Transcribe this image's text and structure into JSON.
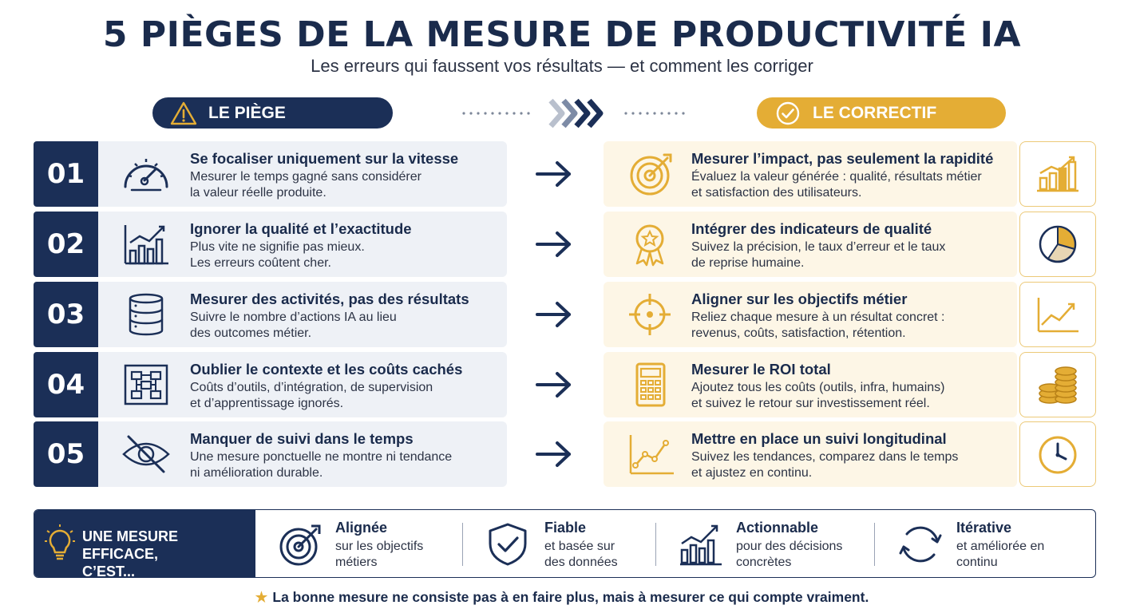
{
  "title": "5 PIÈGES DE LA MESURE DE PRODUCTIVITÉ IA",
  "subtitle": "Les erreurs qui faussent vos résultats — et comment les corriger",
  "header_left": {
    "label": "LE PIÈGE",
    "icon": "warning-icon"
  },
  "header_right": {
    "label": "LE CORRECTIF",
    "icon": "check-circle-icon"
  },
  "colors": {
    "navy": "#1b2f57",
    "gold": "#e4ad35",
    "trap_bg": "#eef1f6",
    "fix_bg": "#fdf6e6"
  },
  "rows": [
    {
      "number": "01",
      "trap": {
        "title": "Se focaliser uniquement sur la vitesse",
        "line1": "Mesurer le temps gagné sans considérer",
        "line2": "la valeur réelle produite.",
        "icon": "speedometer-icon"
      },
      "fix": {
        "title": "Mesurer l’impact, pas seulement la rapidité",
        "line1": "Évaluez la valeur générée : qualité, résultats métier",
        "line2": "et satisfaction des utilisateurs.",
        "icon": "target-arrow-icon",
        "side_icon": "bar-chart-growth-icon"
      }
    },
    {
      "number": "02",
      "trap": {
        "title": "Ignorer la qualité et l’exactitude",
        "line1": "Plus vite ne signifie pas mieux.",
        "line2": "Les erreurs coûtent cher.",
        "icon": "bar-chart-icon"
      },
      "fix": {
        "title": "Intégrer des indicateurs de qualité",
        "line1": "Suivez la précision, le taux d’erreur et le taux",
        "line2": "de reprise humaine.",
        "icon": "award-ribbon-icon",
        "side_icon": "pie-chart-icon"
      }
    },
    {
      "number": "03",
      "trap": {
        "title": "Mesurer des activités, pas des résultats",
        "line1": "Suivre le nombre d’actions IA au lieu",
        "line2": "des outcomes métier.",
        "icon": "database-icon"
      },
      "fix": {
        "title": "Aligner sur les objectifs métier",
        "line1": "Reliez chaque mesure à un résultat concret :",
        "line2": "revenus, coûts, satisfaction, rétention.",
        "icon": "crosshair-icon",
        "side_icon": "line-chart-up-icon"
      }
    },
    {
      "number": "04",
      "trap": {
        "title": "Oublier le contexte et les coûts cachés",
        "line1": "Coûts d’outils, d’intégration, de supervision",
        "line2": "et d’apprentissage ignorés.",
        "icon": "flowchart-icon"
      },
      "fix": {
        "title": "Mesurer le ROI total",
        "line1": "Ajoutez tous les coûts (outils, infra, humains)",
        "line2": "et suivez le retour sur investissement réel.",
        "icon": "calculator-icon",
        "side_icon": "coins-stack-icon"
      }
    },
    {
      "number": "05",
      "trap": {
        "title": "Manquer de suivi dans le temps",
        "line1": "Une mesure ponctuelle ne montre ni tendance",
        "line2": "ni amélioration durable.",
        "icon": "eye-off-icon"
      },
      "fix": {
        "title": "Mettre en place un suivi longitudinal",
        "line1": "Suivez les tendances, comparez dans le temps",
        "line2": "et ajustez en continu.",
        "icon": "trend-line-icon",
        "side_icon": "clock-icon"
      }
    }
  ],
  "summary": {
    "label_line1": "UNE MESURE EFFICACE,",
    "label_line2": "C’EST...",
    "items": [
      {
        "title": "Alignée",
        "line1": "sur les objectifs",
        "line2": "métiers",
        "icon": "target-icon"
      },
      {
        "title": "Fiable",
        "line1": "et basée sur",
        "line2": "des données",
        "icon": "shield-check-icon"
      },
      {
        "title": "Actionnable",
        "line1": "pour des décisions",
        "line2": "concrètes",
        "icon": "growth-chart-icon"
      },
      {
        "title": "Itérative",
        "line1": "et améliorée en",
        "line2": "continu",
        "icon": "refresh-cycle-icon"
      }
    ]
  },
  "footer": "La bonne mesure ne consiste pas à en faire plus, mais à mesurer ce qui compte vraiment."
}
